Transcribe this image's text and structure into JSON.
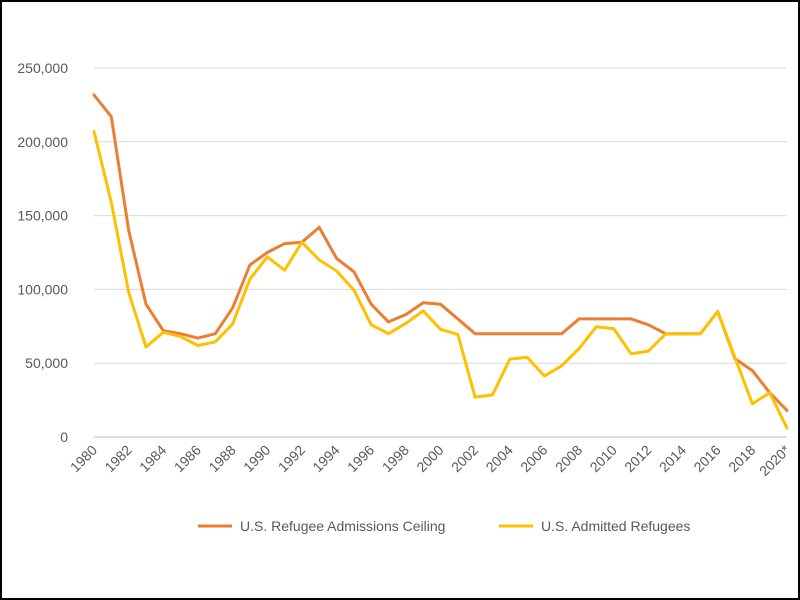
{
  "chart_data": {
    "type": "line",
    "title": "",
    "xlabel": "",
    "ylabel": "",
    "ylim": [
      0,
      250000
    ],
    "yticks": [
      0,
      50000,
      100000,
      150000,
      200000,
      250000
    ],
    "ytick_labels": [
      "0",
      "50,000",
      "100,000",
      "150,000",
      "200,000",
      "250,000"
    ],
    "x": [
      "1980",
      "1981",
      "1982",
      "1983",
      "1984",
      "1985",
      "1986",
      "1987",
      "1988",
      "1989",
      "1990",
      "1991",
      "1992",
      "1993",
      "1994",
      "1995",
      "1996",
      "1997",
      "1998",
      "1999",
      "2000",
      "2001",
      "2002",
      "2003",
      "2004",
      "2005",
      "2006",
      "2007",
      "2008",
      "2009",
      "2010",
      "2011",
      "2012",
      "2013",
      "2014",
      "2015",
      "2016",
      "2017",
      "2018",
      "2019",
      "2020*"
    ],
    "xtick_labels": [
      "1980",
      "1982",
      "1984",
      "1986",
      "1988",
      "1990",
      "1992",
      "1994",
      "1996",
      "1998",
      "2000",
      "2002",
      "2004",
      "2006",
      "2008",
      "2010",
      "2012",
      "2014",
      "2016",
      "2018",
      "2020*"
    ],
    "grid": true,
    "legend_position": "bottom",
    "series": [
      {
        "name": "U.S. Refugee Admissions Ceiling",
        "color": "#ED7D31",
        "values": [
          231700,
          217000,
          140000,
          90000,
          72000,
          70000,
          67000,
          70000,
          87500,
          116500,
          125000,
          131000,
          132000,
          142000,
          121000,
          112000,
          90000,
          78000,
          83000,
          91000,
          90000,
          80000,
          70000,
          70000,
          70000,
          70000,
          70000,
          70000,
          80000,
          80000,
          80000,
          80000,
          76000,
          70000,
          70000,
          70000,
          85000,
          53000,
          45000,
          30000,
          18000
        ]
      },
      {
        "name": "U.S. Admitted Refugees",
        "color": "#FFC000",
        "values": [
          207000,
          159000,
          98000,
          61000,
          71000,
          68000,
          62000,
          64500,
          76500,
          107000,
          122000,
          113000,
          132000,
          120000,
          112500,
          99500,
          76000,
          70000,
          77000,
          85500,
          73000,
          69500,
          27000,
          28500,
          52800,
          54000,
          41300,
          48300,
          60000,
          74700,
          73300,
          56400,
          58200,
          69900,
          70000,
          70000,
          85000,
          53700,
          22500,
          30000,
          6000
        ]
      }
    ]
  }
}
